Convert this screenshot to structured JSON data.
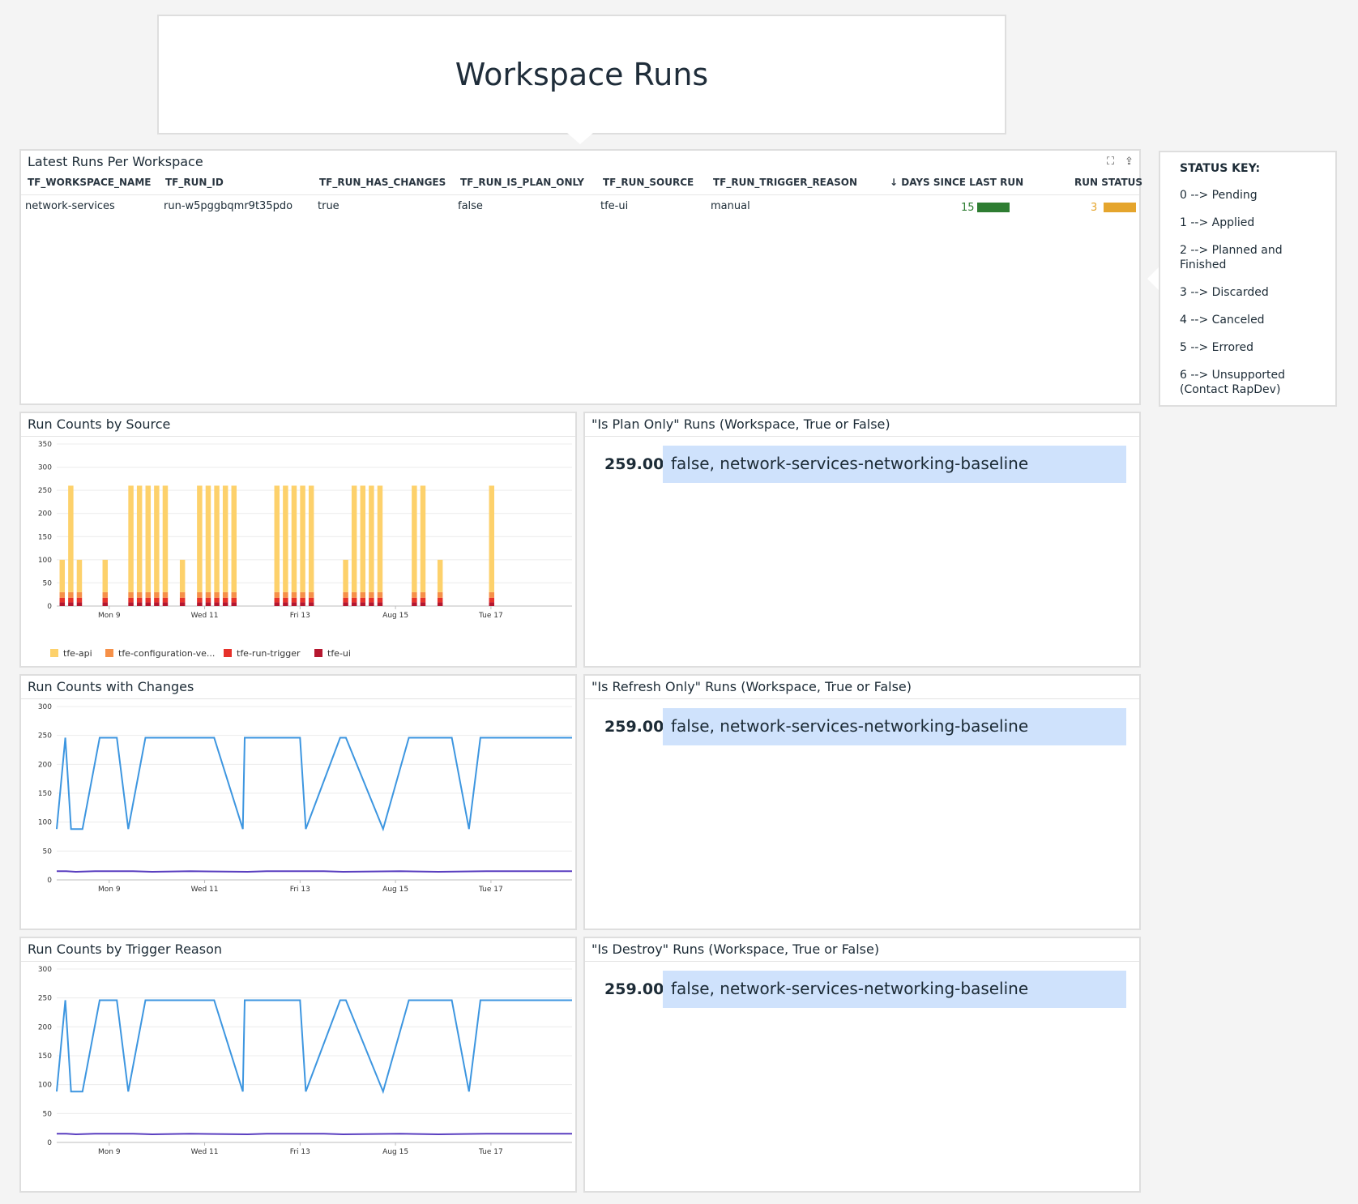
{
  "header": {
    "title": "Workspace Runs"
  },
  "table": {
    "title": "Latest Runs Per Workspace",
    "columns": [
      "TF_WORKSPACE_NAME",
      "TF_RUN_ID",
      "TF_RUN_HAS_CHANGES",
      "TF_RUN_IS_PLAN_ONLY",
      "TF_RUN_SOURCE",
      "TF_RUN_TRIGGER_REASON",
      "↓ DAYS SINCE LAST RUN",
      "RUN STATUS"
    ],
    "rows": [
      {
        "workspace": "network-services",
        "run_id": "run-w5pggbqmr9t35pdo",
        "has_changes": "true",
        "is_plan_only": "false",
        "source": "tfe-ui",
        "trigger_reason": "manual",
        "days_since_last_run": "15",
        "run_status": "3"
      }
    ],
    "days_bar_color": "#2e7d32",
    "status_bar_color": "#e5a52d"
  },
  "status_key": {
    "title": "STATUS KEY:",
    "items": [
      "0 --> Pending",
      "1 --> Applied",
      "2 --> Planned and Finished",
      "3 --> Discarded",
      "4 --> Canceled",
      "5 --> Errored",
      "6 --> Unsupported (Contact RapDev)"
    ]
  },
  "value_cards": {
    "plan_only": {
      "title": "\"Is Plan Only\" Runs (Workspace, True or False)",
      "value": "259.00",
      "label": "false, network-services-networking-baseline"
    },
    "refresh_only": {
      "title": "\"Is Refresh Only\" Runs (Workspace, True or False)",
      "value": "259.00",
      "label": "false, network-services-networking-baseline"
    },
    "destroy": {
      "title": "\"Is Destroy\" Runs (Workspace, True or False)",
      "value": "259.00",
      "label": "false, network-services-networking-baseline"
    }
  },
  "charts": {
    "by_source": {
      "title": "Run Counts by Source"
    },
    "with_changes": {
      "title": "Run Counts with Changes"
    },
    "by_trigger": {
      "title": "Run Counts by Trigger Reason"
    }
  },
  "chart_data": [
    {
      "type": "bar",
      "stacked": true,
      "title": "Run Counts by Source",
      "ylim": [
        0,
        350
      ],
      "yticks": [
        0,
        50,
        100,
        150,
        200,
        250,
        300,
        350
      ],
      "xticks": [
        {
          "x": 5.5,
          "label": "Mon 9"
        },
        {
          "x": 15.5,
          "label": "Wed 11"
        },
        {
          "x": 25.5,
          "label": "Fri 13"
        },
        {
          "x": 35.5,
          "label": "Aug 15"
        },
        {
          "x": 45.5,
          "label": "Tue 17"
        }
      ],
      "xlim": [
        0,
        54
      ],
      "totals": [
        100,
        260,
        100,
        0,
        0,
        100,
        0,
        0,
        260,
        260,
        260,
        260,
        260,
        0,
        100,
        0,
        260,
        260,
        260,
        260,
        260,
        0,
        0,
        0,
        0,
        260,
        260,
        260,
        260,
        260,
        0,
        0,
        0,
        100,
        260,
        260,
        260,
        260,
        0,
        0,
        0,
        260,
        260,
        0,
        100,
        0,
        0,
        0,
        0,
        0,
        260,
        0,
        0,
        0,
        0,
        0,
        0,
        0,
        0,
        0,
        0,
        0,
        0,
        0,
        0,
        0,
        0,
        0
      ],
      "series": [
        {
          "name": "tfe-api",
          "color": "#fdd16b"
        },
        {
          "name": "tfe-configuration-ve...",
          "color": "#f69048"
        },
        {
          "name": "tfe-run-trigger",
          "color": "#e6312a"
        },
        {
          "name": "tfe-ui",
          "color": "#b5172f"
        }
      ],
      "grid": true,
      "legend": "bottom-left"
    },
    {
      "type": "line",
      "title": "Run Counts with Changes",
      "ylim": [
        0,
        300
      ],
      "yticks": [
        0,
        50,
        100,
        150,
        200,
        250,
        300
      ],
      "xticks": [
        {
          "x": 5.5,
          "label": "Mon 9"
        },
        {
          "x": 15.5,
          "label": "Wed 11"
        },
        {
          "x": 25.5,
          "label": "Fri 13"
        },
        {
          "x": 35.5,
          "label": "Aug 15"
        },
        {
          "x": 45.5,
          "label": "Tue 17"
        }
      ],
      "xlim": [
        0,
        54
      ],
      "series": [
        {
          "color": "#3d96e0",
          "points": [
            [
              0,
              88
            ],
            [
              0.9,
              246
            ],
            [
              1.5,
              88
            ],
            [
              2.7,
              88
            ],
            [
              4.5,
              246
            ],
            [
              6.3,
              246
            ],
            [
              7.5,
              88
            ],
            [
              9.3,
              246
            ],
            [
              16.5,
              246
            ],
            [
              19.5,
              88
            ],
            [
              19.7,
              246
            ],
            [
              25.5,
              246
            ],
            [
              26.1,
              88
            ],
            [
              29.7,
              246
            ],
            [
              30.3,
              246
            ],
            [
              34.2,
              88
            ],
            [
              36.9,
              246
            ],
            [
              41.4,
              246
            ],
            [
              43.2,
              88
            ],
            [
              44.4,
              246
            ],
            [
              54,
              246
            ]
          ]
        },
        {
          "color": "#5a3fc0",
          "points": [
            [
              0,
              15
            ],
            [
              1,
              15
            ],
            [
              2,
              14
            ],
            [
              4,
              15
            ],
            [
              8,
              15
            ],
            [
              10,
              14
            ],
            [
              14,
              15
            ],
            [
              20,
              14
            ],
            [
              22,
              15
            ],
            [
              28,
              15
            ],
            [
              30,
              14
            ],
            [
              36,
              15
            ],
            [
              40,
              14
            ],
            [
              45,
              15
            ],
            [
              54,
              15
            ]
          ]
        }
      ],
      "grid": true
    },
    {
      "type": "line",
      "title": "Run Counts by Trigger Reason",
      "ylim": [
        0,
        300
      ],
      "yticks": [
        0,
        50,
        100,
        150,
        200,
        250,
        300
      ],
      "xticks": [
        {
          "x": 5.5,
          "label": "Mon 9"
        },
        {
          "x": 15.5,
          "label": "Wed 11"
        },
        {
          "x": 25.5,
          "label": "Fri 13"
        },
        {
          "x": 35.5,
          "label": "Aug 15"
        },
        {
          "x": 45.5,
          "label": "Tue 17"
        }
      ],
      "xlim": [
        0,
        54
      ],
      "series": [
        {
          "color": "#3d96e0",
          "points": [
            [
              0,
              88
            ],
            [
              0.9,
              246
            ],
            [
              1.5,
              88
            ],
            [
              2.7,
              88
            ],
            [
              4.5,
              246
            ],
            [
              6.3,
              246
            ],
            [
              7.5,
              88
            ],
            [
              9.3,
              246
            ],
            [
              16.5,
              246
            ],
            [
              19.5,
              88
            ],
            [
              19.7,
              246
            ],
            [
              25.5,
              246
            ],
            [
              26.1,
              88
            ],
            [
              29.7,
              246
            ],
            [
              30.3,
              246
            ],
            [
              34.2,
              88
            ],
            [
              36.9,
              246
            ],
            [
              41.4,
              246
            ],
            [
              43.2,
              88
            ],
            [
              44.4,
              246
            ],
            [
              54,
              246
            ]
          ]
        },
        {
          "color": "#5a3fc0",
          "points": [
            [
              0,
              15
            ],
            [
              1,
              15
            ],
            [
              2,
              14
            ],
            [
              4,
              15
            ],
            [
              8,
              15
            ],
            [
              10,
              14
            ],
            [
              14,
              15
            ],
            [
              20,
              14
            ],
            [
              22,
              15
            ],
            [
              28,
              15
            ],
            [
              30,
              14
            ],
            [
              36,
              15
            ],
            [
              40,
              14
            ],
            [
              45,
              15
            ],
            [
              54,
              15
            ]
          ]
        }
      ],
      "grid": true
    }
  ]
}
